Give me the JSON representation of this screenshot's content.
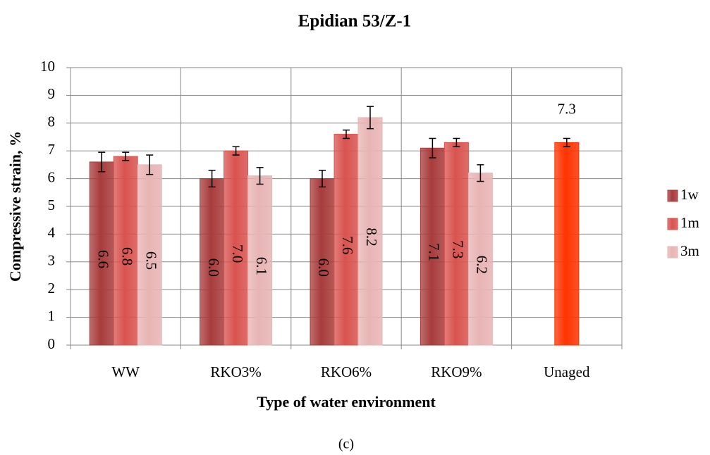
{
  "chart_data": {
    "type": "bar",
    "title": "Epidian 53/Z-1",
    "x_label": "Type of water environment",
    "y_label": "Compressive strain, %",
    "caption": "(c)",
    "categories": [
      "WW",
      "RKO3%",
      "RKO6%",
      "RKO9%",
      "Unaged"
    ],
    "series": [
      {
        "name": "1w",
        "color": "#a83c3c",
        "values": [
          6.6,
          6.0,
          6.0,
          7.1,
          null
        ],
        "value_labels": [
          "6.6",
          "6.0",
          "6.0",
          "7.1",
          null
        ],
        "errors": [
          0.35,
          0.3,
          0.3,
          0.35,
          null
        ]
      },
      {
        "name": "1m",
        "color": "#d9534f",
        "values": [
          6.8,
          7.0,
          7.6,
          7.3,
          null
        ],
        "value_labels": [
          "6.8",
          "7.0",
          "7.6",
          "7.3",
          null
        ],
        "errors": [
          0.15,
          0.15,
          0.15,
          0.15,
          null
        ]
      },
      {
        "name": "3m",
        "color": "#e8b4b4",
        "values": [
          6.5,
          6.1,
          8.2,
          6.2,
          null
        ],
        "value_labels": [
          "6.5",
          "6.1",
          "8.2",
          "6.2",
          null
        ],
        "errors": [
          0.35,
          0.3,
          0.4,
          0.3,
          null
        ]
      },
      {
        "color": "#ff3300",
        "values": [
          null,
          null,
          null,
          null,
          7.3
        ],
        "value_labels": [
          null,
          null,
          null,
          null,
          "7.3"
        ],
        "errors": [
          null,
          null,
          null,
          null,
          0.15
        ]
      }
    ],
    "ylim": [
      0,
      10
    ],
    "yticks": [
      0,
      1,
      2,
      3,
      4,
      5,
      6,
      7,
      8,
      9,
      10
    ],
    "grid": true,
    "legend": "right"
  }
}
